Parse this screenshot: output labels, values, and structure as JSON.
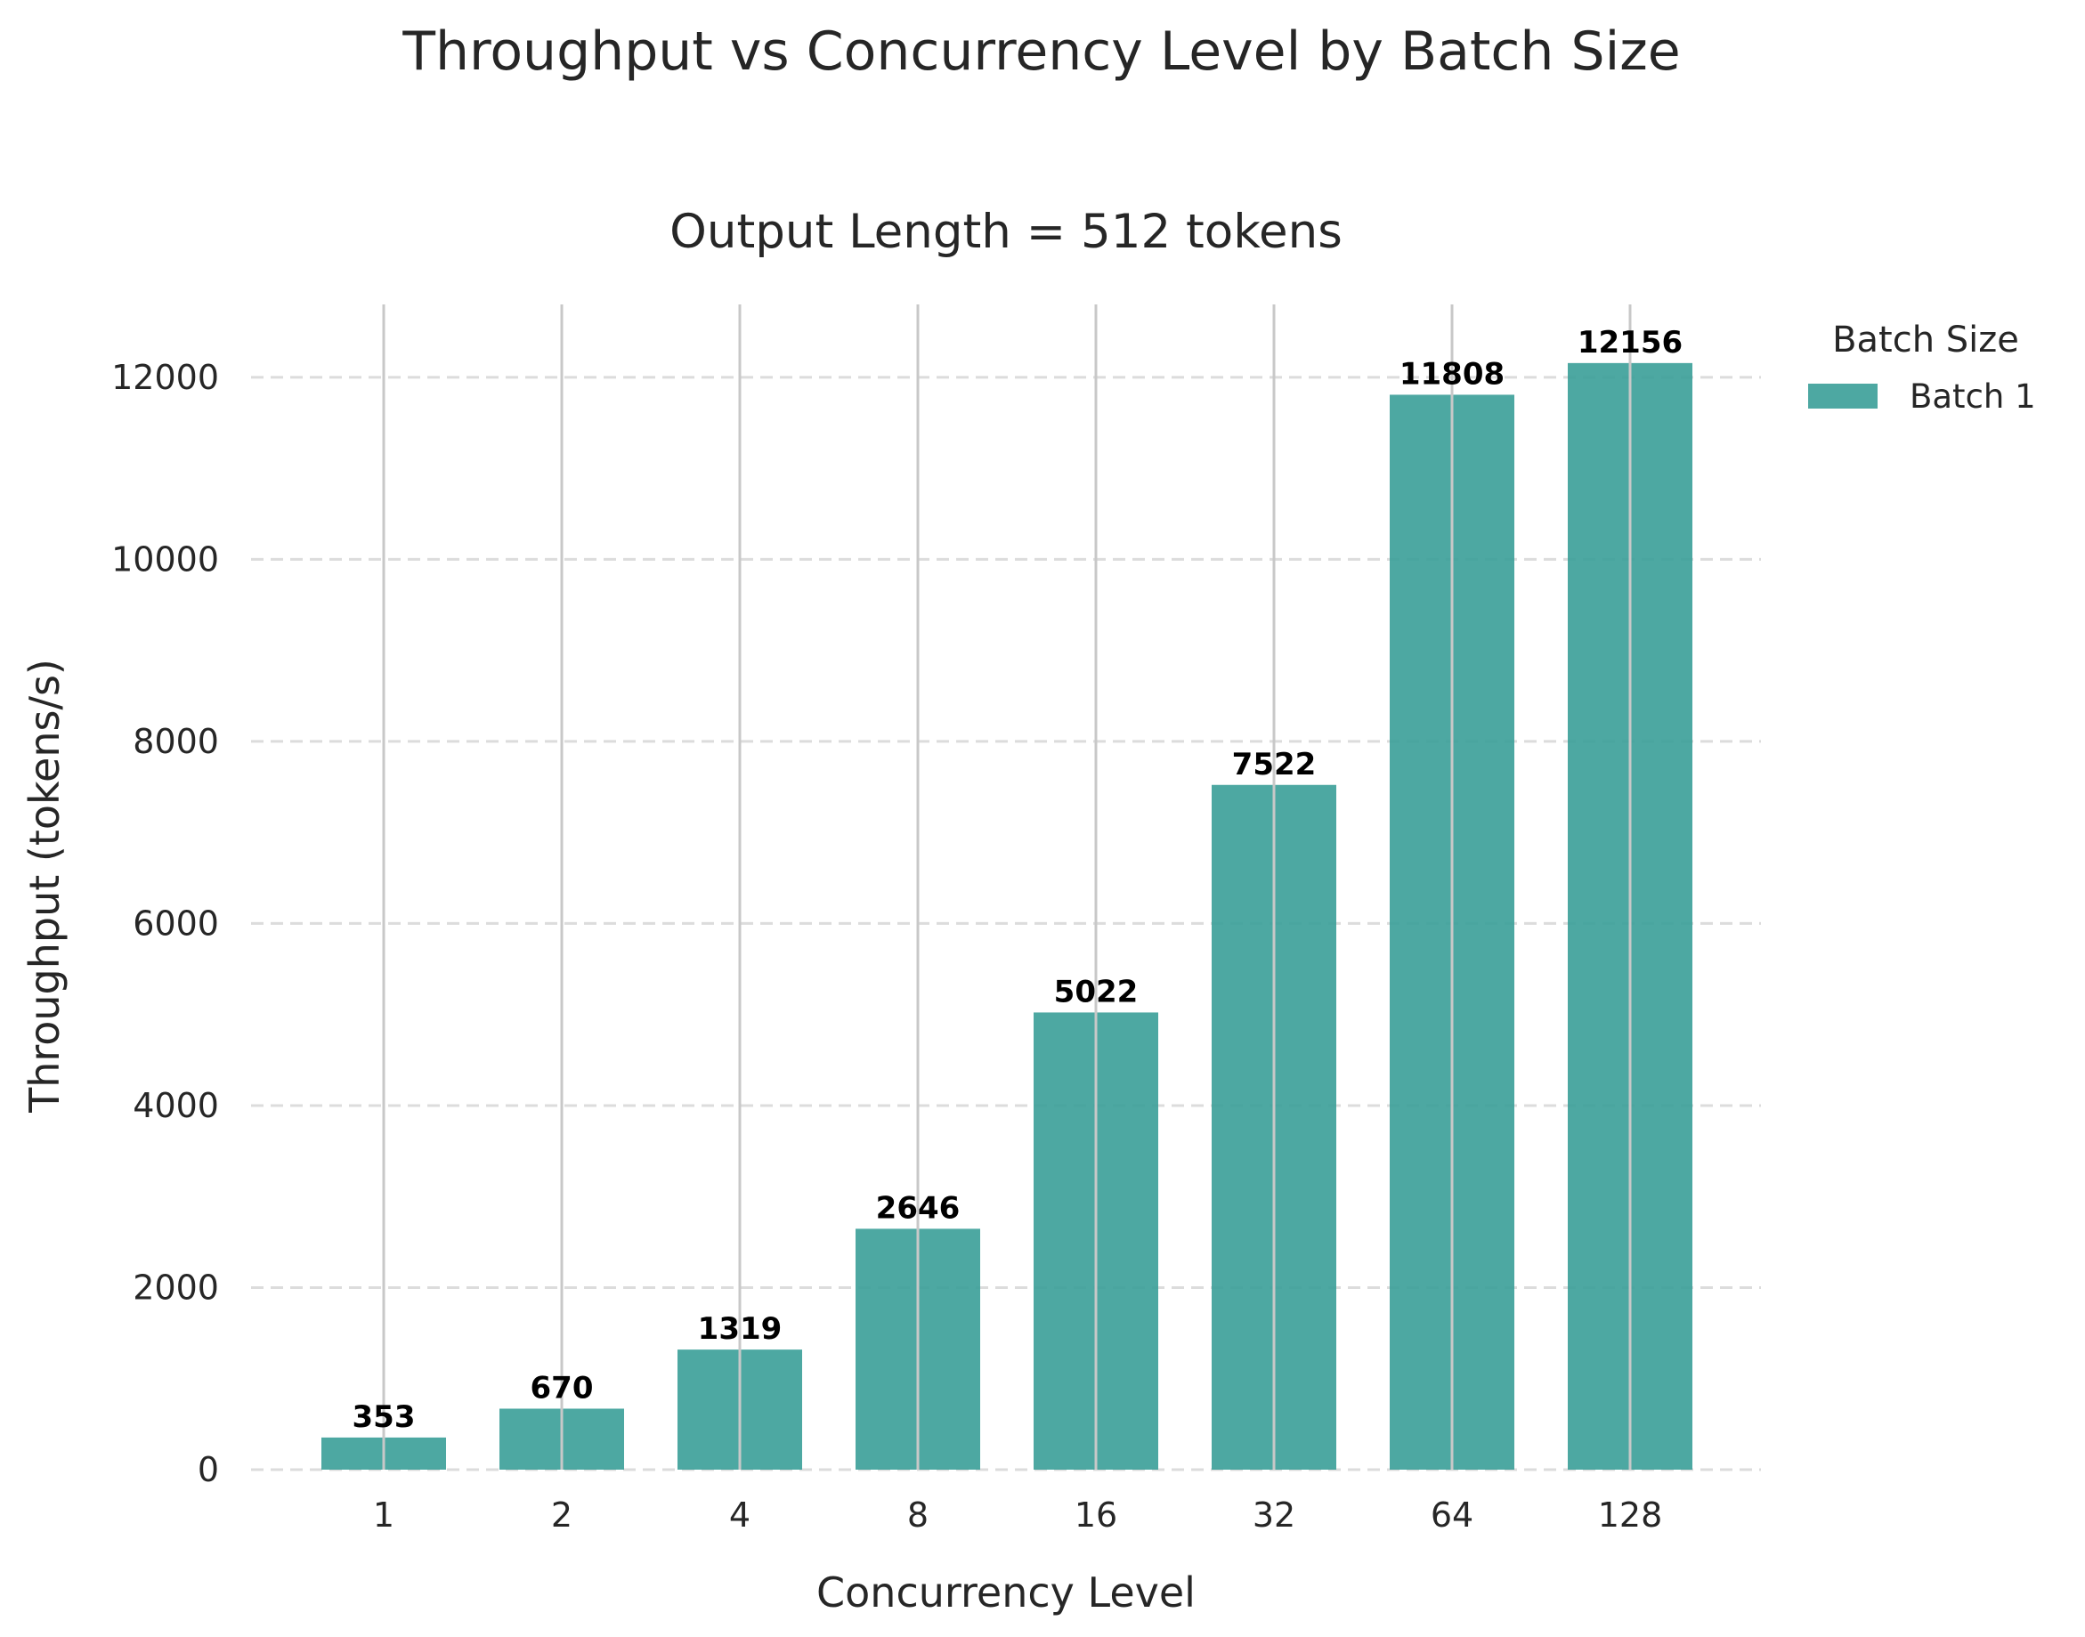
{
  "chart_data": {
    "type": "bar",
    "title": "Throughput vs Concurrency Level by Batch Size",
    "subtitle": "Output Length = 512 tokens",
    "xlabel": "Concurrency Level",
    "ylabel": "Throughput (tokens/s)",
    "categories": [
      "1",
      "2",
      "4",
      "8",
      "16",
      "32",
      "64",
      "128"
    ],
    "series": [
      {
        "name": "Batch 1",
        "color": "#3a9e98",
        "values": [
          353,
          670,
          1319,
          2646,
          5022,
          7522,
          11808,
          12156
        ]
      }
    ],
    "ylim": [
      0,
      12800
    ],
    "yticks": [
      0,
      2000,
      4000,
      6000,
      8000,
      10000,
      12000
    ],
    "grid": true,
    "legend": {
      "title": "Batch Size",
      "placement": "outside-top-right"
    }
  }
}
